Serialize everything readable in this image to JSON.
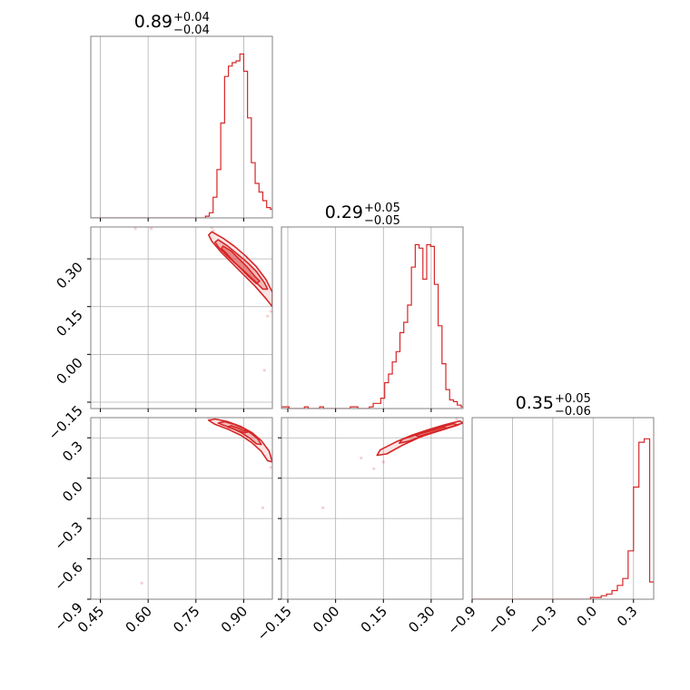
{
  "chart_data": {
    "type": "corner",
    "color": "#d62728",
    "grid": true,
    "parameters": [
      {
        "titles": {
          "median": "0.89",
          "plus": "+0.04",
          "minus": "−0.04"
        },
        "range": [
          0.42,
          0.99
        ],
        "ticks": [
          "0.45",
          "0.60",
          "0.75",
          "0.90"
        ]
      },
      {
        "titles": {
          "median": "0.29",
          "plus": "+0.05",
          "minus": "−0.05"
        },
        "range": [
          -0.17,
          0.4
        ],
        "ticks": [
          "−0.15",
          "0.00",
          "0.15",
          "0.30"
        ]
      },
      {
        "titles": {
          "median": "0.35",
          "plus": "+0.05",
          "minus": "−0.06"
        },
        "range": [
          -0.9,
          0.45
        ],
        "ticks": [
          "−0.9",
          "−0.6",
          "−0.3",
          "0.0",
          "0.3"
        ]
      }
    ],
    "hist1d": [
      {
        "bin_edges": [
          0.42,
          0.432,
          0.444,
          0.456,
          0.468,
          0.48,
          0.492,
          0.504,
          0.516,
          0.528,
          0.54,
          0.552,
          0.564,
          0.576,
          0.588,
          0.6,
          0.612,
          0.624,
          0.636,
          0.648,
          0.66,
          0.672,
          0.684,
          0.696,
          0.708,
          0.72,
          0.732,
          0.744,
          0.756,
          0.768,
          0.78,
          0.792,
          0.804,
          0.816,
          0.828,
          0.84,
          0.852,
          0.864,
          0.876,
          0.888,
          0.9,
          0.912,
          0.924,
          0.936,
          0.948,
          0.96,
          0.972,
          0.984,
          0.99
        ],
        "counts": [
          0,
          0,
          0,
          0,
          0,
          0,
          0,
          0,
          0,
          0,
          0,
          0,
          0,
          0,
          0,
          0,
          0,
          0,
          0,
          0,
          0,
          0,
          0,
          0,
          0,
          0,
          0,
          0,
          0,
          0,
          0.01,
          0.03,
          0.12,
          0.28,
          0.55,
          0.82,
          0.88,
          0.9,
          0.91,
          0.95,
          0.85,
          0.58,
          0.32,
          0.2,
          0.15,
          0.1,
          0.06,
          0.05
        ]
      },
      {
        "bin_edges": [
          -0.17,
          -0.158,
          -0.146,
          -0.134,
          -0.122,
          -0.11,
          -0.098,
          -0.086,
          -0.074,
          -0.062,
          -0.05,
          -0.038,
          -0.026,
          -0.014,
          -0.002,
          0.01,
          0.022,
          0.034,
          0.046,
          0.058,
          0.07,
          0.082,
          0.094,
          0.106,
          0.118,
          0.13,
          0.142,
          0.154,
          0.166,
          0.178,
          0.19,
          0.202,
          0.214,
          0.226,
          0.238,
          0.25,
          0.262,
          0.274,
          0.286,
          0.298,
          0.31,
          0.322,
          0.334,
          0.346,
          0.358,
          0.37,
          0.382,
          0.394,
          0.4
        ],
        "counts": [
          0.01,
          0.01,
          0,
          0,
          0,
          0,
          0.01,
          0,
          0,
          0,
          0.01,
          0,
          0,
          0,
          0,
          0,
          0,
          0,
          0.01,
          0.01,
          0,
          0,
          0,
          0.01,
          0.03,
          0.03,
          0.06,
          0.15,
          0.2,
          0.27,
          0.33,
          0.44,
          0.5,
          0.6,
          0.82,
          0.95,
          0.93,
          0.75,
          0.95,
          0.94,
          0.72,
          0.48,
          0.26,
          0.11,
          0.05,
          0.04,
          0.02,
          0.01
        ]
      },
      {
        "bin_edges": [
          -0.9,
          -0.86,
          -0.82,
          -0.78,
          -0.74,
          -0.7,
          -0.66,
          -0.62,
          -0.58,
          -0.54,
          -0.5,
          -0.46,
          -0.42,
          -0.38,
          -0.34,
          -0.3,
          -0.26,
          -0.22,
          -0.18,
          -0.14,
          -0.1,
          -0.06,
          -0.02,
          0.02,
          0.06,
          0.1,
          0.14,
          0.18,
          0.22,
          0.26,
          0.3,
          0.34,
          0.38,
          0.42,
          0.45
        ],
        "counts": [
          0,
          0,
          0,
          0,
          0,
          0,
          0,
          0,
          0,
          0,
          0,
          0,
          0,
          0,
          0,
          0,
          0,
          0,
          0,
          0,
          0,
          0,
          0.01,
          0.01,
          0.02,
          0.03,
          0.05,
          0.08,
          0.12,
          0.28,
          0.65,
          0.91,
          0.93,
          0.1
        ]
      }
    ],
    "hist2d": [
      {
        "x_param": 0,
        "y_param": 1,
        "contours": [
          [
            [
              0.835,
              0.34
            ],
            [
              0.86,
              0.325
            ],
            [
              0.885,
              0.3
            ],
            [
              0.91,
              0.275
            ],
            [
              0.935,
              0.245
            ],
            [
              0.95,
              0.23
            ],
            [
              0.94,
              0.222
            ],
            [
              0.915,
              0.245
            ],
            [
              0.89,
              0.27
            ],
            [
              0.865,
              0.295
            ],
            [
              0.845,
              0.318
            ],
            [
              0.83,
              0.332
            ]
          ],
          [
            [
              0.82,
              0.36
            ],
            [
              0.85,
              0.34
            ],
            [
              0.88,
              0.315
            ],
            [
              0.91,
              0.29
            ],
            [
              0.94,
              0.26
            ],
            [
              0.965,
              0.225
            ],
            [
              0.975,
              0.205
            ],
            [
              0.96,
              0.205
            ],
            [
              0.935,
              0.23
            ],
            [
              0.905,
              0.258
            ],
            [
              0.875,
              0.285
            ],
            [
              0.845,
              0.312
            ],
            [
              0.82,
              0.338
            ],
            [
              0.81,
              0.352
            ]
          ],
          [
            [
              0.8,
              0.385
            ],
            [
              0.835,
              0.365
            ],
            [
              0.87,
              0.34
            ],
            [
              0.905,
              0.31
            ],
            [
              0.94,
              0.275
            ],
            [
              0.97,
              0.235
            ],
            [
              0.99,
              0.195
            ],
            [
              0.99,
              0.15
            ],
            [
              0.97,
              0.175
            ],
            [
              0.935,
              0.215
            ],
            [
              0.9,
              0.25
            ],
            [
              0.865,
              0.285
            ],
            [
              0.83,
              0.32
            ],
            [
              0.8,
              0.355
            ],
            [
              0.79,
              0.375
            ]
          ]
        ],
        "scatter": [
          [
            0.79,
            0.41
          ],
          [
            0.8,
            0.398
          ],
          [
            0.805,
            0.388
          ],
          [
            0.985,
            0.135
          ],
          [
            0.975,
            0.12
          ],
          [
            0.965,
            -0.05
          ],
          [
            0.56,
            0.395
          ],
          [
            0.61,
            0.395
          ]
        ]
      },
      {
        "x_param": 0,
        "y_param": 2,
        "contours": [
          [
            [
              0.86,
              0.39
            ],
            [
              0.88,
              0.375
            ],
            [
              0.9,
              0.355
            ],
            [
              0.915,
              0.345
            ],
            [
              0.905,
              0.338
            ],
            [
              0.885,
              0.35
            ],
            [
              0.865,
              0.368
            ],
            [
              0.85,
              0.38
            ]
          ],
          [
            [
              0.84,
              0.42
            ],
            [
              0.87,
              0.4
            ],
            [
              0.9,
              0.37
            ],
            [
              0.925,
              0.33
            ],
            [
              0.945,
              0.29
            ],
            [
              0.955,
              0.25
            ],
            [
              0.94,
              0.255
            ],
            [
              0.92,
              0.295
            ],
            [
              0.895,
              0.335
            ],
            [
              0.865,
              0.37
            ],
            [
              0.835,
              0.395
            ],
            [
              0.82,
              0.41
            ]
          ],
          [
            [
              0.81,
              0.44
            ],
            [
              0.85,
              0.42
            ],
            [
              0.89,
              0.385
            ],
            [
              0.925,
              0.34
            ],
            [
              0.955,
              0.28
            ],
            [
              0.98,
              0.2
            ],
            [
              0.99,
              0.12
            ],
            [
              0.975,
              0.13
            ],
            [
              0.955,
              0.2
            ],
            [
              0.925,
              0.265
            ],
            [
              0.89,
              0.32
            ],
            [
              0.85,
              0.365
            ],
            [
              0.81,
              0.4
            ],
            [
              0.79,
              0.43
            ]
          ]
        ],
        "scatter": [
          [
            0.79,
            0.445
          ],
          [
            0.96,
            -0.22
          ],
          [
            0.985,
            0.08
          ],
          [
            0.58,
            -0.78
          ]
        ]
      },
      {
        "x_param": 1,
        "y_param": 2,
        "contours": [
          [
            [
              0.25,
              0.32
            ],
            [
              0.28,
              0.34
            ],
            [
              0.31,
              0.36
            ],
            [
              0.34,
              0.38
            ],
            [
              0.35,
              0.37
            ],
            [
              0.32,
              0.35
            ],
            [
              0.29,
              0.33
            ],
            [
              0.26,
              0.31
            ]
          ],
          [
            [
              0.21,
              0.29
            ],
            [
              0.25,
              0.32
            ],
            [
              0.29,
              0.35
            ],
            [
              0.33,
              0.38
            ],
            [
              0.37,
              0.405
            ],
            [
              0.385,
              0.395
            ],
            [
              0.35,
              0.37
            ],
            [
              0.31,
              0.34
            ],
            [
              0.27,
              0.31
            ],
            [
              0.23,
              0.275
            ],
            [
              0.2,
              0.26
            ]
          ],
          [
            [
              0.14,
              0.21
            ],
            [
              0.19,
              0.27
            ],
            [
              0.24,
              0.32
            ],
            [
              0.29,
              0.36
            ],
            [
              0.34,
              0.395
            ],
            [
              0.39,
              0.425
            ],
            [
              0.4,
              0.41
            ],
            [
              0.36,
              0.38
            ],
            [
              0.31,
              0.345
            ],
            [
              0.26,
              0.3
            ],
            [
              0.21,
              0.245
            ],
            [
              0.16,
              0.18
            ],
            [
              0.13,
              0.17
            ]
          ]
        ],
        "scatter": [
          [
            0.12,
            0.07
          ],
          [
            0.08,
            0.15
          ],
          [
            -0.04,
            -0.22
          ],
          [
            0.38,
            0.44
          ],
          [
            0.15,
            0.12
          ]
        ]
      }
    ]
  }
}
